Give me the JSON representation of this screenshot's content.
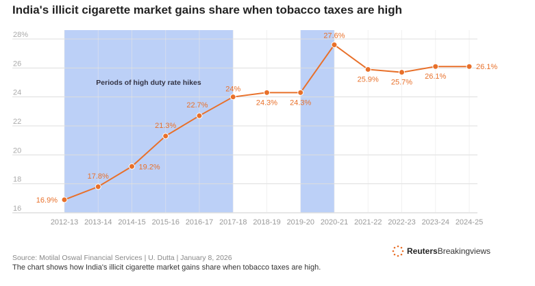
{
  "chart_data": {
    "type": "line",
    "title": "India's illicit cigarette market gains share when tobacco taxes are high",
    "categories": [
      "2012-13",
      "2013-14",
      "2014-15",
      "2015-16",
      "2016-17",
      "2017-18",
      "2018-19",
      "2019-20",
      "2020-21",
      "2021-22",
      "2022-23",
      "2023-24",
      "2024-25"
    ],
    "values": [
      16.9,
      17.8,
      19.2,
      21.3,
      22.7,
      24,
      24.3,
      24.3,
      27.6,
      25.9,
      25.7,
      26.1,
      26.1
    ],
    "labels": [
      "16.9%",
      "17.8%",
      "19.2%",
      "21.3%",
      "22.7%",
      "24%",
      "24.3%",
      "24.3%",
      "27.6%",
      "25.9%",
      "25.7%",
      "26.1%",
      "26.1%"
    ],
    "yticks": [
      "16",
      "18",
      "20",
      "22",
      "24",
      "26",
      "28%"
    ],
    "ylim": [
      16,
      28
    ],
    "shaded_periods": [
      [
        "2012-13",
        "2017-18"
      ],
      [
        "2019-20",
        "2020-21"
      ]
    ],
    "annotation": "Periods of high duty rate hikes",
    "colors": {
      "line": "#e8702a",
      "shade": "#bcd0f7",
      "grid": "#dddddd"
    }
  },
  "footer": {
    "source": "Source: Motilal Oswal Financial Services | U. Dutta | January 8, 2026",
    "description": "The chart shows how India's illicit cigarette market gains share when tobacco taxes are high.",
    "logo_bold": "Reuters",
    "logo_rest": "Breakingviews"
  }
}
